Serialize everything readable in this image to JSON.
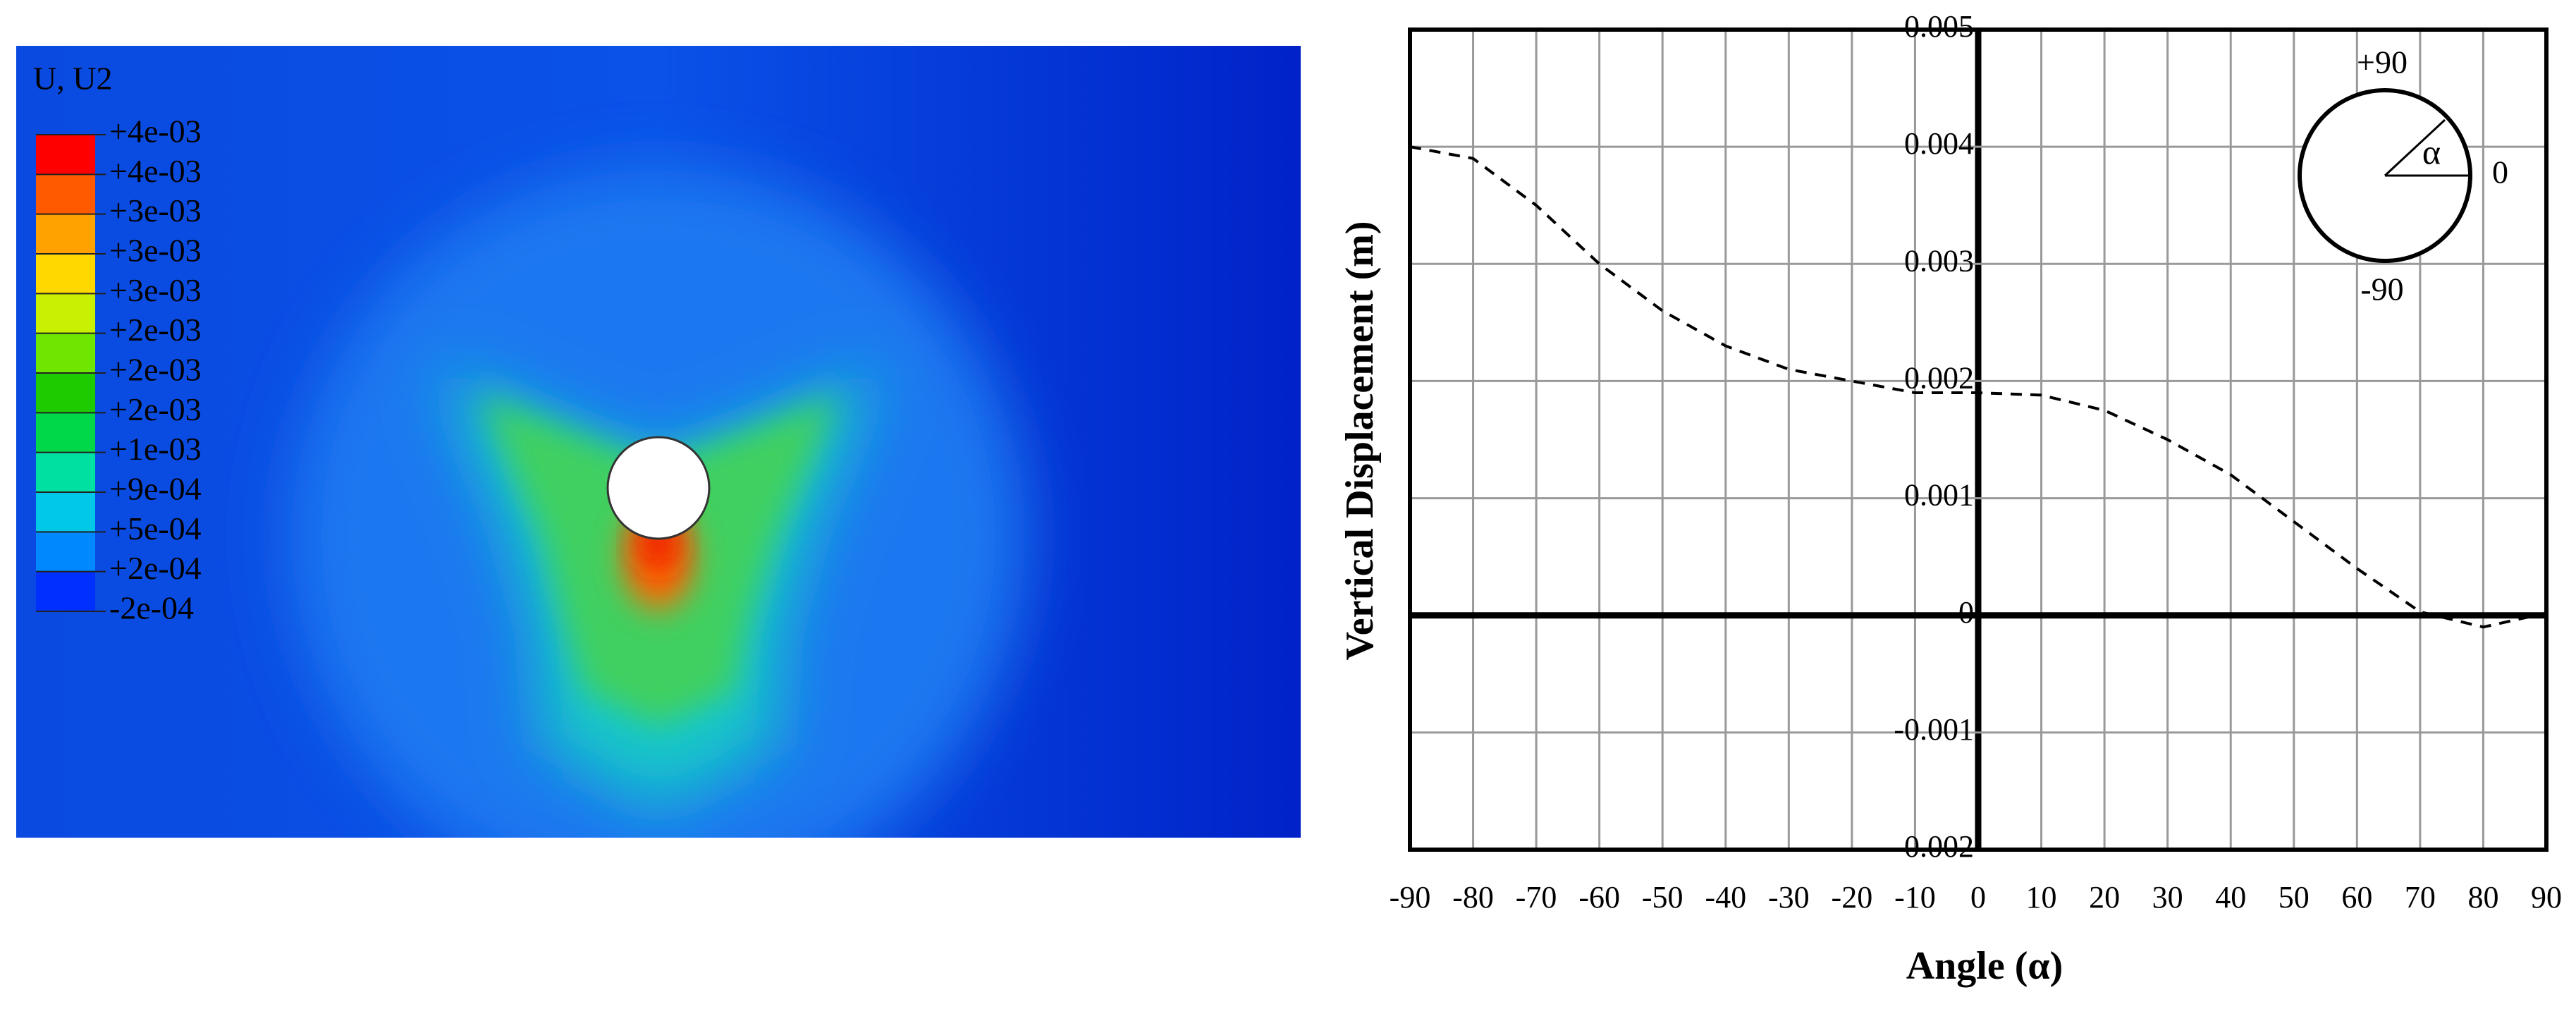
{
  "contour_plot": {
    "title": "U, U2",
    "legend_labels": [
      "+4e-03",
      "+4e-03",
      "+3e-03",
      "+3e-03",
      "+3e-03",
      "+2e-03",
      "+2e-03",
      "+2e-03",
      "+1e-03",
      "+9e-04",
      "+5e-04",
      "+2e-04",
      "-2e-04"
    ],
    "legend_colors": [
      "#ff0000",
      "#ff5a00",
      "#ffa200",
      "#ffd800",
      "#c8f000",
      "#6ee600",
      "#1ecb00",
      "#00d84a",
      "#00e0a0",
      "#00c8e6",
      "#0088ff",
      "#0030ff"
    ]
  },
  "chart_data": {
    "type": "line",
    "x_label": "Angle (α)",
    "y_label": "Vertical Displacement (m)",
    "x": [
      -90,
      -80,
      -70,
      -60,
      -50,
      -40,
      -30,
      -20,
      -10,
      0,
      10,
      20,
      30,
      40,
      50,
      60,
      70,
      80,
      90
    ],
    "values": [
      0.004,
      0.0039,
      0.0035,
      0.003,
      0.0026,
      0.0023,
      0.0021,
      0.002,
      0.0019,
      0.0019,
      0.00188,
      0.00175,
      0.0015,
      0.0012,
      0.0008,
      0.0004,
      3e-05,
      -0.0001,
      2e-05
    ],
    "color": "#000000",
    "xlim": [
      -90,
      90
    ],
    "xticks": [
      -90,
      -80,
      -70,
      -60,
      -50,
      -40,
      -30,
      -20,
      -10,
      0,
      10,
      20,
      30,
      40,
      50,
      60,
      70,
      80,
      90
    ],
    "ylim": [
      -0.002,
      0.005
    ],
    "yticks": [
      -0.002,
      -0.001,
      0,
      0.001,
      0.002,
      0.003,
      0.004,
      0.005
    ],
    "grid": true,
    "annotations": [
      "+90",
      "0",
      "-90",
      "α"
    ]
  }
}
